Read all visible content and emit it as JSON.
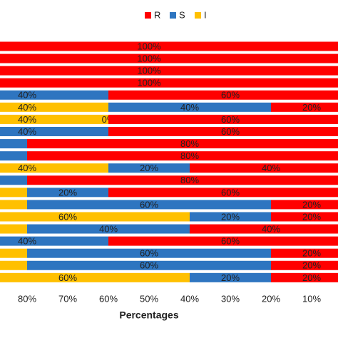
{
  "chart_data": {
    "type": "stacked-bar-horizontal",
    "x_label": "Percentages",
    "xlim": [
      100,
      0
    ],
    "xticks": [
      {
        "value": 80,
        "label": "80%"
      },
      {
        "value": 70,
        "label": "70%"
      },
      {
        "value": 60,
        "label": "60%"
      },
      {
        "value": 50,
        "label": "50%"
      },
      {
        "value": 40,
        "label": "40%"
      },
      {
        "value": 30,
        "label": "30%"
      },
      {
        "value": 20,
        "label": "20%"
      },
      {
        "value": 10,
        "label": "10%"
      }
    ],
    "legend": "top",
    "series": [
      {
        "name": "R",
        "color": "#ff0000",
        "values": [
          100,
          100,
          100,
          100,
          60,
          20,
          60,
          60,
          80,
          80,
          40,
          80,
          60,
          20,
          20,
          40,
          60,
          20,
          20,
          20
        ],
        "value_labels": [
          "100%",
          "100%",
          "100%",
          "100%",
          "60%",
          "20%",
          "60%",
          "60%",
          "80%",
          "80%",
          "40%",
          "80%",
          "60%",
          "20%",
          "20%",
          "40%",
          "60%",
          "20%",
          "20%",
          "20%"
        ]
      },
      {
        "name": "S",
        "color": "#2e75c0",
        "values": [
          0,
          0,
          0,
          0,
          40,
          40,
          0,
          40,
          20,
          20,
          20,
          20,
          20,
          60,
          20,
          40,
          40,
          60,
          60,
          20
        ],
        "value_labels": [
          "0%",
          "0%",
          "0%",
          "0%",
          "40%",
          "40%",
          "0%",
          "40%",
          "20%",
          "20%",
          "20%",
          "20%",
          "20%",
          "60%",
          "20%",
          "40%",
          "40%",
          "60%",
          "60%",
          "20%"
        ]
      },
      {
        "name": "I",
        "color": "#ffc000",
        "values": [
          0,
          0,
          0,
          0,
          0,
          40,
          40,
          0,
          0,
          0,
          40,
          0,
          20,
          20,
          60,
          20,
          0,
          20,
          20,
          60
        ],
        "value_labels": [
          "0%",
          "0%",
          "0%",
          "0%",
          "0%",
          "40%",
          "40%",
          "0%",
          "0%",
          "0%",
          "40%",
          "0%",
          "20%",
          "20%",
          "60%",
          "20%",
          "0%",
          "20%",
          "20%",
          "60%"
        ]
      }
    ]
  }
}
